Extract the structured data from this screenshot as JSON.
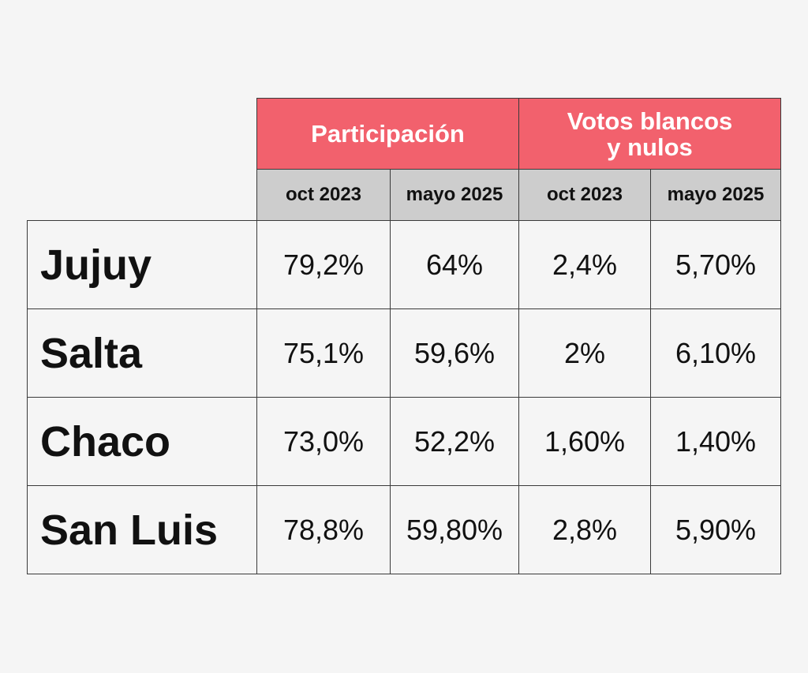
{
  "table": {
    "groups": [
      {
        "label_lines": [
          "Participación"
        ],
        "color": "#f2616d"
      },
      {
        "label_lines": [
          "Votos blancos",
          "y nulos"
        ],
        "color": "#f2616d"
      }
    ],
    "subheaders": [
      "oct 2023",
      "mayo 2025",
      "oct 2023",
      "mayo 2025"
    ],
    "rows": [
      {
        "province": "Jujuy",
        "values": [
          "79,2%",
          "64%",
          "2,4%",
          "5,70%"
        ]
      },
      {
        "province": "Salta",
        "values": [
          "75,1%",
          "59,6%",
          "2%",
          "6,10%"
        ]
      },
      {
        "province": "Chaco",
        "values": [
          "73,0%",
          "52,2%",
          "1,60%",
          "1,40%"
        ]
      },
      {
        "province": "San Luis",
        "values": [
          "78,8%",
          "59,80%",
          "2,8%",
          "5,90%"
        ]
      }
    ]
  },
  "chart_data": {
    "type": "table",
    "column_groups": [
      "Participación",
      "Votos blancos y nulos"
    ],
    "columns": [
      "oct 2023",
      "mayo 2025",
      "oct 2023",
      "mayo 2025"
    ],
    "rows": [
      "Jujuy",
      "Salta",
      "Chaco",
      "San Luis"
    ],
    "values": [
      [
        79.2,
        64.0,
        2.4,
        5.7
      ],
      [
        75.1,
        59.6,
        2.0,
        6.1
      ],
      [
        73.0,
        52.2,
        1.6,
        1.4
      ],
      [
        78.8,
        59.8,
        2.8,
        5.9
      ]
    ],
    "unit": "%"
  },
  "colors": {
    "header_accent": "#f2616d",
    "subheader_bg": "#cdcdcd",
    "background": "#f5f5f5",
    "border": "#3a3a3a"
  }
}
